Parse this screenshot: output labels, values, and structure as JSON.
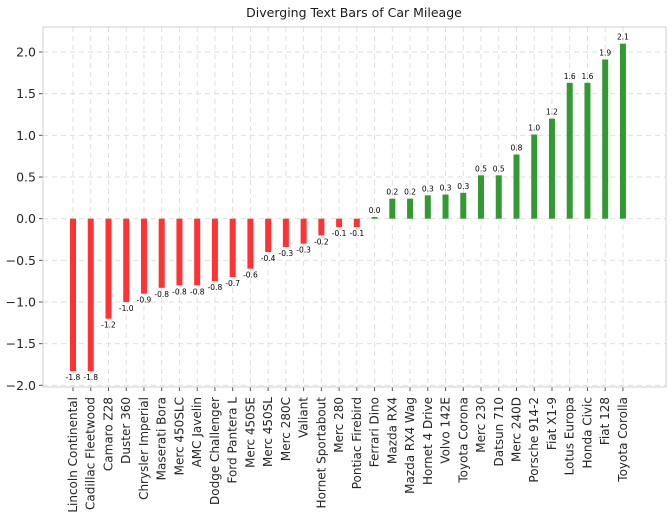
{
  "chart_data": {
    "type": "bar",
    "title": "Diverging Text Bars of Car Mileage",
    "xlabel": "",
    "ylabel": "",
    "ylim": [
      -2.02,
      2.3
    ],
    "yticks": [
      -2.0,
      -1.5,
      -1.0,
      -0.5,
      0.0,
      0.5,
      1.0,
      1.5,
      2.0
    ],
    "ytick_labels": [
      "−2.0",
      "−1.5",
      "−1.0",
      "−0.5",
      "0.0",
      "0.5",
      "1.0",
      "1.5",
      "2.0"
    ],
    "grid": true,
    "colors": {
      "negative": "#ff3333",
      "positive": "#339933",
      "grid": "#dcdcdc"
    },
    "categories": [
      "Lincoln Continental",
      "Cadillac Fleetwood",
      "Camaro Z28",
      "Duster 360",
      "Chrysler Imperial",
      "Maserati Bora",
      "Merc 450SLC",
      "AMC Javelin",
      "Dodge Challenger",
      "Ford Pantera L",
      "Merc 450SE",
      "Merc 450SL",
      "Merc 280C",
      "Valiant",
      "Hornet Sportabout",
      "Merc 280",
      "Pontiac Firebird",
      "Ferrari Dino",
      "Mazda RX4",
      "Mazda RX4 Wag",
      "Hornet 4 Drive",
      "Volvo 142E",
      "Toyota Corona",
      "Merc 230",
      "Datsun 710",
      "Merc 240D",
      "Porsche 914-2",
      "Fiat X1-9",
      "Lotus Europa",
      "Honda Civic",
      "Fiat 128",
      "Toyota Corolla"
    ],
    "values": [
      -1.83,
      -1.83,
      -1.2,
      -1.0,
      -0.9,
      -0.83,
      -0.8,
      -0.8,
      -0.75,
      -0.7,
      -0.6,
      -0.4,
      -0.34,
      -0.3,
      -0.2,
      -0.1,
      -0.1,
      0.02,
      0.24,
      0.24,
      0.28,
      0.29,
      0.31,
      0.52,
      0.52,
      0.77,
      1.01,
      1.2,
      1.63,
      1.63,
      1.91,
      2.1
    ],
    "data_labels": [
      "-1.8",
      "-1.8",
      "-1.2",
      "-1.0",
      "-0.9",
      "-0.8",
      "-0.8",
      "-0.8",
      "-0.8",
      "-0.7",
      "-0.6",
      "-0.4",
      "-0.3",
      "-0.3",
      "-0.2",
      "-0.1",
      "-0.1",
      "0.0",
      "0.2",
      "0.2",
      "0.3",
      "0.3",
      "0.3",
      "0.5",
      "0.5",
      "0.8",
      "1.0",
      "1.2",
      "1.6",
      "1.6",
      "1.9",
      "2.1"
    ]
  }
}
